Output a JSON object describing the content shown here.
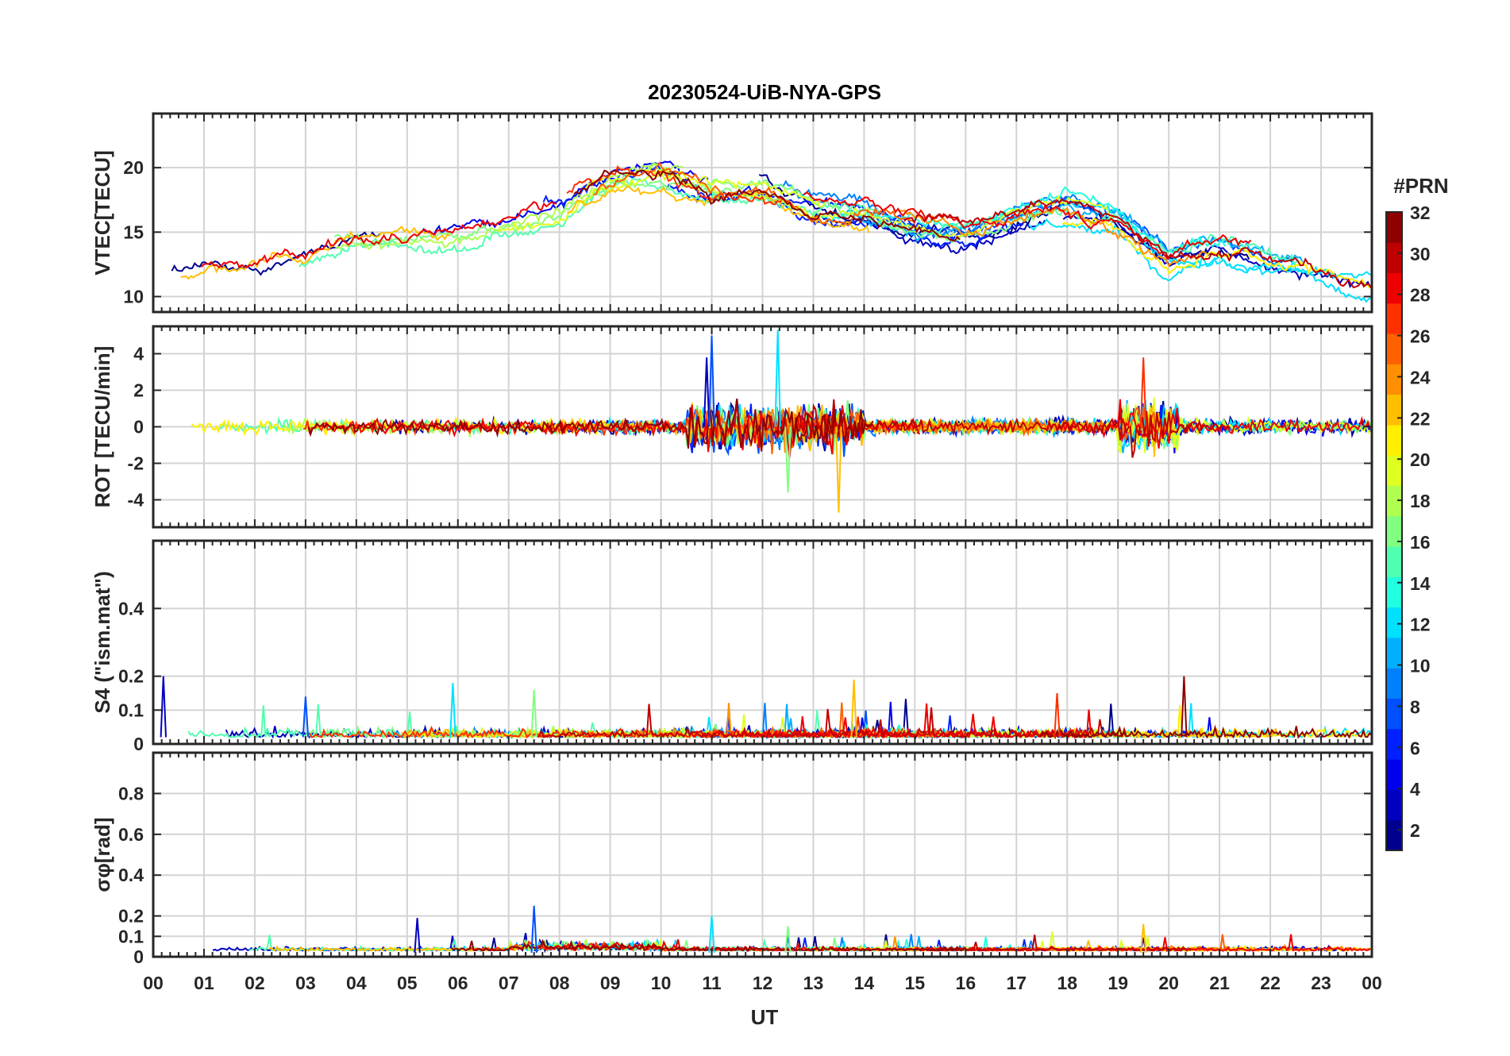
{
  "title": "20230524-UiB-NYA-GPS",
  "xlabel": "UT",
  "x_ticks": [
    "00",
    "01",
    "02",
    "03",
    "04",
    "05",
    "06",
    "07",
    "08",
    "09",
    "10",
    "11",
    "12",
    "13",
    "14",
    "15",
    "16",
    "17",
    "18",
    "19",
    "20",
    "21",
    "22",
    "23",
    "00"
  ],
  "colorbar": {
    "title": "#PRN",
    "ticks": [
      "2",
      "4",
      "6",
      "8",
      "10",
      "12",
      "14",
      "16",
      "18",
      "20",
      "22",
      "24",
      "26",
      "28",
      "30",
      "32"
    ],
    "range": [
      1,
      32
    ],
    "colors": [
      "#00008f",
      "#0000bf",
      "#0000ef",
      "#0020ff",
      "#0050ff",
      "#0080ff",
      "#00b0ff",
      "#00e0ff",
      "#20ffdf",
      "#50ffaf",
      "#80ff80",
      "#afff50",
      "#dfff20",
      "#ffef00",
      "#ffbf00",
      "#ff8f00",
      "#ff6000",
      "#ff3000",
      "#ef0000",
      "#bf0000",
      "#8f0000"
    ]
  },
  "colors": {
    "axis": "#262626",
    "grid": "#d3d3d3"
  },
  "chart_data": [
    {
      "type": "line",
      "panel": "vtec",
      "ylabel": "VTEC[TECU]",
      "ylim": [
        8.8,
        24.2
      ],
      "yticks": [
        "10",
        "15",
        "20"
      ],
      "ytick_values": [
        10,
        15,
        20
      ],
      "xlim": [
        0,
        24
      ],
      "description_series": "one line per PRN satellite; approximate envelope",
      "envelope_hours": [
        0,
        2,
        4,
        6,
        8,
        9,
        10,
        11,
        12,
        13,
        14,
        15,
        16,
        17,
        18,
        19,
        20,
        21,
        22,
        23,
        24
      ],
      "envelope_values": [
        11.5,
        12.5,
        14.5,
        15.0,
        17.0,
        19.5,
        20.0,
        18.5,
        18.5,
        17.0,
        16.5,
        15.5,
        15.0,
        16.0,
        17.0,
        16.0,
        13.0,
        14.0,
        13.0,
        12.0,
        11.0
      ]
    },
    {
      "type": "line",
      "panel": "rot",
      "ylabel": "ROT [TECU/min]",
      "ylim": [
        -5.5,
        5.5
      ],
      "yticks": [
        "-4",
        "-2",
        "0",
        "2",
        "4"
      ],
      "ytick_values": [
        -4,
        -2,
        0,
        2,
        4
      ],
      "xlim": [
        0,
        24
      ],
      "description_series": "one line per PRN satellite; fluctuating about zero",
      "peak_hours": [
        10.9,
        11.0,
        12.3,
        12.5,
        13.5,
        19.5
      ],
      "peak_values": [
        3.8,
        5.0,
        5.3,
        -3.6,
        -4.7,
        3.8
      ]
    },
    {
      "type": "line",
      "panel": "s4",
      "ylabel": "S4 (\"ism.mat\")",
      "ylim": [
        0,
        0.6
      ],
      "yticks": [
        "0",
        "0.1",
        "0.2",
        "0.4"
      ],
      "ytick_values": [
        0,
        0.1,
        0.2,
        0.4
      ],
      "xlim": [
        0,
        24
      ],
      "description_series": "one line per PRN satellite; mostly below 0.1",
      "peak_hours": [
        0.2,
        3.0,
        5.9,
        7.5,
        13.8,
        17.8,
        20.3
      ],
      "peak_values": [
        0.2,
        0.14,
        0.18,
        0.16,
        0.19,
        0.15,
        0.2
      ]
    },
    {
      "type": "line",
      "panel": "sigma_phi",
      "ylabel": "σφ[rad]",
      "ylim": [
        0,
        1.0
      ],
      "yticks": [
        "0",
        "0.1",
        "0.2",
        "0.4",
        "0.6",
        "0.8"
      ],
      "ytick_values": [
        0,
        0.1,
        0.2,
        0.4,
        0.6,
        0.8
      ],
      "xlim": [
        0,
        24
      ],
      "description_series": "one line per PRN satellite; mostly below 0.1",
      "peak_hours": [
        5.2,
        7.5,
        11.0,
        12.5,
        19.5
      ],
      "peak_values": [
        0.19,
        0.25,
        0.2,
        0.15,
        0.16
      ]
    }
  ]
}
